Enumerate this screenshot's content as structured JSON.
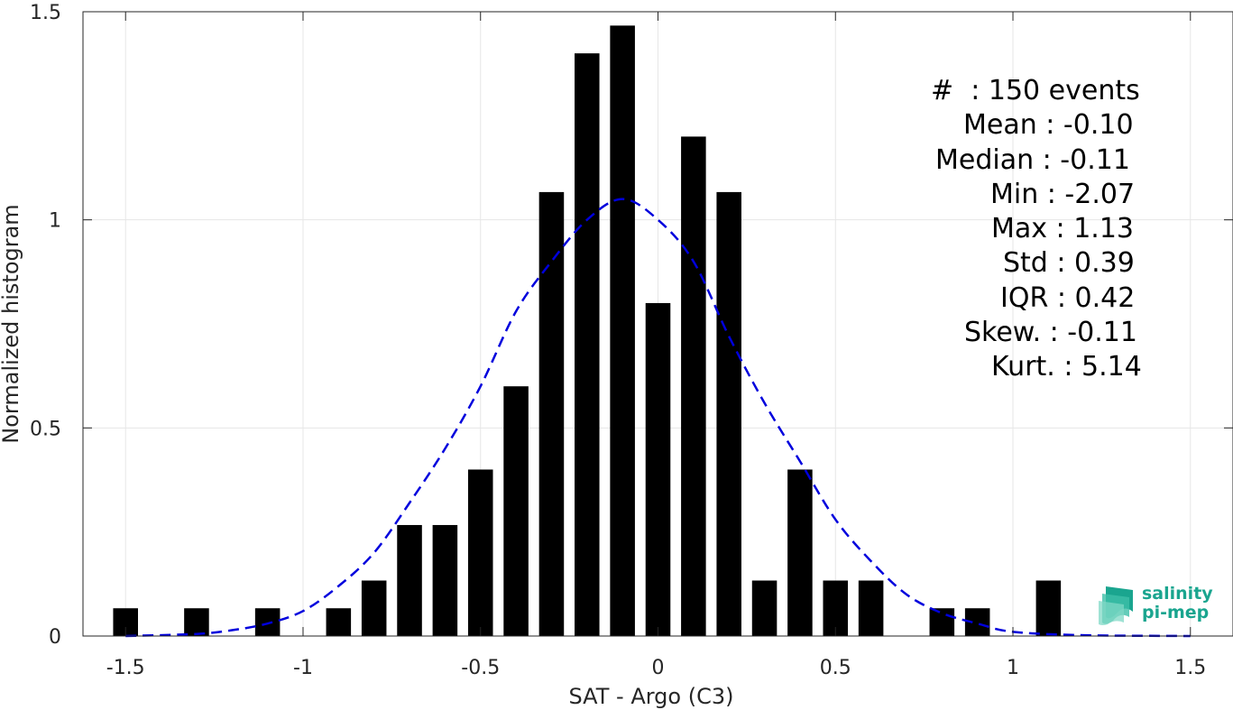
{
  "chart_data": {
    "type": "bar",
    "xlabel": "SAT - Argo (C3)",
    "ylabel": "Normalized histogram",
    "xlim": [
      -1.62,
      1.62
    ],
    "ylim": [
      0,
      1.5
    ],
    "xticks": [
      -1.5,
      -1,
      -0.5,
      0,
      0.5,
      1,
      1.5
    ],
    "xtick_labels": [
      "-1.5",
      "-1",
      "-0.5",
      "0",
      "0.5",
      "1",
      "1.5"
    ],
    "yticks": [
      0,
      0.5,
      1,
      1.5
    ],
    "ytick_labels": [
      "0",
      "0.5",
      "1",
      "1.5"
    ],
    "grid": true,
    "bar_width": 0.07,
    "bar_color": "#000000",
    "bars": [
      {
        "x": -1.5,
        "y": 0.0667
      },
      {
        "x": -1.3,
        "y": 0.0667
      },
      {
        "x": -1.1,
        "y": 0.0667
      },
      {
        "x": -0.9,
        "y": 0.0667
      },
      {
        "x": -0.8,
        "y": 0.1333
      },
      {
        "x": -0.7,
        "y": 0.2667
      },
      {
        "x": -0.6,
        "y": 0.2667
      },
      {
        "x": -0.5,
        "y": 0.4
      },
      {
        "x": -0.4,
        "y": 0.6
      },
      {
        "x": -0.3,
        "y": 1.0667
      },
      {
        "x": -0.2,
        "y": 1.4
      },
      {
        "x": -0.1,
        "y": 1.4667
      },
      {
        "x": 0.0,
        "y": 0.8
      },
      {
        "x": 0.1,
        "y": 1.2
      },
      {
        "x": 0.2,
        "y": 1.0667
      },
      {
        "x": 0.3,
        "y": 0.1333
      },
      {
        "x": 0.4,
        "y": 0.4
      },
      {
        "x": 0.5,
        "y": 0.1333
      },
      {
        "x": 0.6,
        "y": 0.1333
      },
      {
        "x": 0.8,
        "y": 0.0667
      },
      {
        "x": 0.9,
        "y": 0.0667
      },
      {
        "x": 1.1,
        "y": 0.1333
      }
    ],
    "fit": {
      "style": "dashed",
      "color": "#0000dd",
      "points": [
        {
          "x": -1.5,
          "y": 0.0
        },
        {
          "x": -1.3,
          "y": 0.005
        },
        {
          "x": -1.2,
          "y": 0.014
        },
        {
          "x": -1.1,
          "y": 0.03
        },
        {
          "x": -1.0,
          "y": 0.06
        },
        {
          "x": -0.9,
          "y": 0.12
        },
        {
          "x": -0.8,
          "y": 0.2
        },
        {
          "x": -0.7,
          "y": 0.32
        },
        {
          "x": -0.6,
          "y": 0.45
        },
        {
          "x": -0.5,
          "y": 0.6
        },
        {
          "x": -0.4,
          "y": 0.78
        },
        {
          "x": -0.3,
          "y": 0.9
        },
        {
          "x": -0.2,
          "y": 1.0
        },
        {
          "x": -0.1,
          "y": 1.05
        },
        {
          "x": 0.0,
          "y": 1.0
        },
        {
          "x": 0.1,
          "y": 0.9
        },
        {
          "x": 0.2,
          "y": 0.72
        },
        {
          "x": 0.3,
          "y": 0.56
        },
        {
          "x": 0.4,
          "y": 0.42
        },
        {
          "x": 0.5,
          "y": 0.28
        },
        {
          "x": 0.6,
          "y": 0.18
        },
        {
          "x": 0.7,
          "y": 0.1
        },
        {
          "x": 0.8,
          "y": 0.055
        },
        {
          "x": 0.9,
          "y": 0.03
        },
        {
          "x": 1.0,
          "y": 0.01
        },
        {
          "x": 1.2,
          "y": 0.002
        },
        {
          "x": 1.5,
          "y": 0.0
        }
      ]
    },
    "stats": [
      "#  : 150 events",
      "Mean : -0.10",
      "Median : -0.11",
      "Min : -2.07",
      "Max : 1.13",
      "Std : 0.39",
      "IQR : 0.42",
      "Skew. : -0.11",
      "Kurt. : 5.14"
    ]
  },
  "logo": {
    "line1": "salinity",
    "line2": "pi-mep",
    "color": "#1aa58f"
  }
}
